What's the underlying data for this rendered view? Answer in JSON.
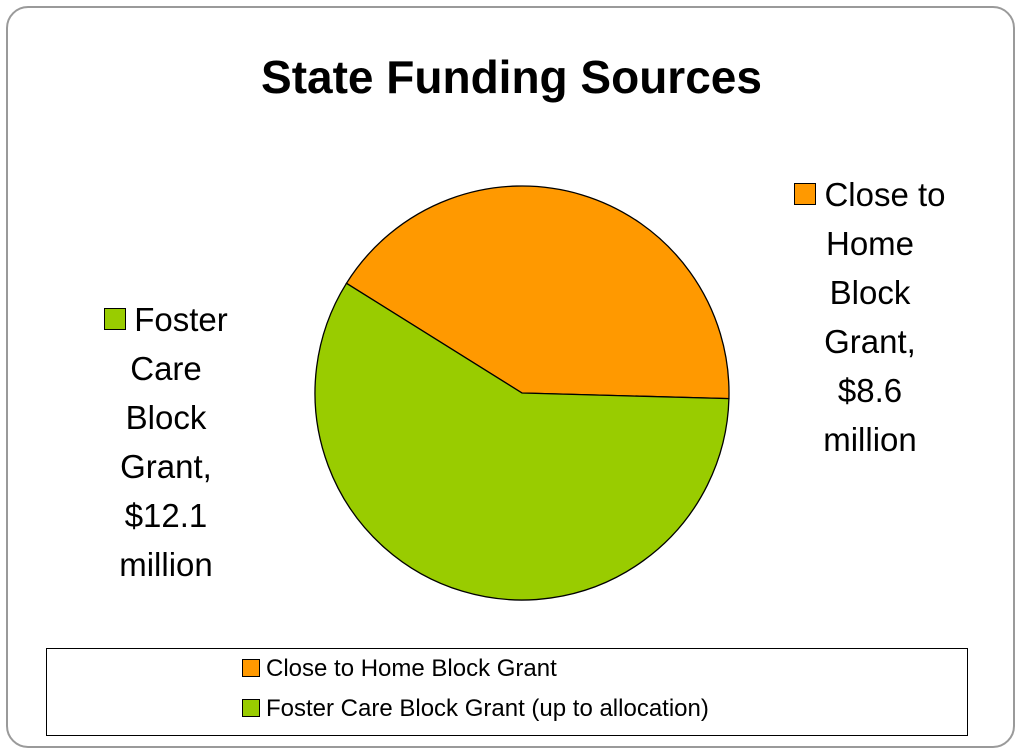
{
  "chart_data": {
    "type": "pie",
    "title": "State Funding Sources",
    "slices": [
      {
        "label": "Close to Home Block Grant",
        "value": 8.6,
        "unit": "million",
        "data_label_lines": [
          "Close to",
          "Home",
          "Block",
          "Grant,",
          "$8.6",
          "million"
        ],
        "color": "#FF9900"
      },
      {
        "label": "Foster Care Block Grant (up to allocation)",
        "value": 12.1,
        "unit": "million",
        "data_label_lines": [
          "Foster",
          "Care",
          "Block",
          "Grant,",
          "$12.1",
          "million"
        ],
        "color": "#99CC00"
      }
    ],
    "legend": {
      "placement": "bottom",
      "entries": [
        "Close to Home Block Grant",
        "Foster Care Block Grant (up to allocation)"
      ]
    }
  }
}
